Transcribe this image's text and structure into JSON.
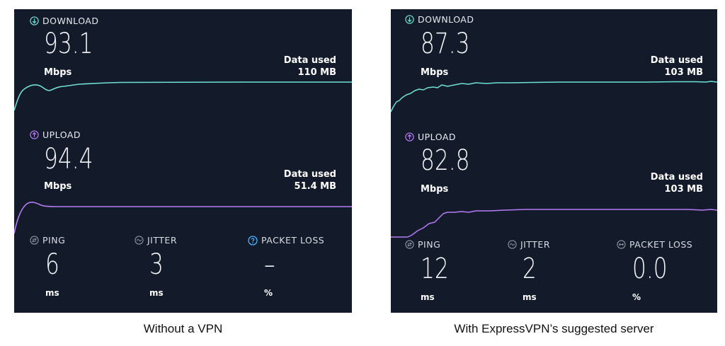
{
  "colors": {
    "panel_bg": "#131a29",
    "download_accent": "#6fe0d6",
    "upload_accent": "#b57cf5",
    "stat_icon": "#8a93a3",
    "packet_loss_help": "#4fb3ff"
  },
  "panels": [
    {
      "caption": "Without a VPN",
      "download": {
        "label": "DOWNLOAD",
        "value": "93.1",
        "unit": "Mbps",
        "data_used_label": "Data used",
        "data_used_value": "110 MB"
      },
      "upload": {
        "label": "UPLOAD",
        "value": "94.4",
        "unit": "Mbps",
        "data_used_label": "Data used",
        "data_used_value": "51.4 MB"
      },
      "ping": {
        "label": "PING",
        "value": "6",
        "unit": "ms"
      },
      "jitter": {
        "label": "JITTER",
        "value": "3",
        "unit": "ms"
      },
      "packet_loss": {
        "label": "PACKET LOSS",
        "value": "–",
        "unit": "%",
        "icon": "help-circle-icon"
      }
    },
    {
      "caption": "With ExpressVPN’s suggested server",
      "download": {
        "label": "DOWNLOAD",
        "value": "87.3",
        "unit": "Mbps",
        "data_used_label": "Data used",
        "data_used_value": "103 MB"
      },
      "upload": {
        "label": "UPLOAD",
        "value": "82.8",
        "unit": "Mbps",
        "data_used_label": "Data used",
        "data_used_value": "103 MB"
      },
      "ping": {
        "label": "PING",
        "value": "12",
        "unit": "ms"
      },
      "jitter": {
        "label": "JITTER",
        "value": "2",
        "unit": "ms"
      },
      "packet_loss": {
        "label": "PACKET LOSS",
        "value": "0.0",
        "unit": "%",
        "icon": "packet-loss-icon"
      }
    }
  ]
}
